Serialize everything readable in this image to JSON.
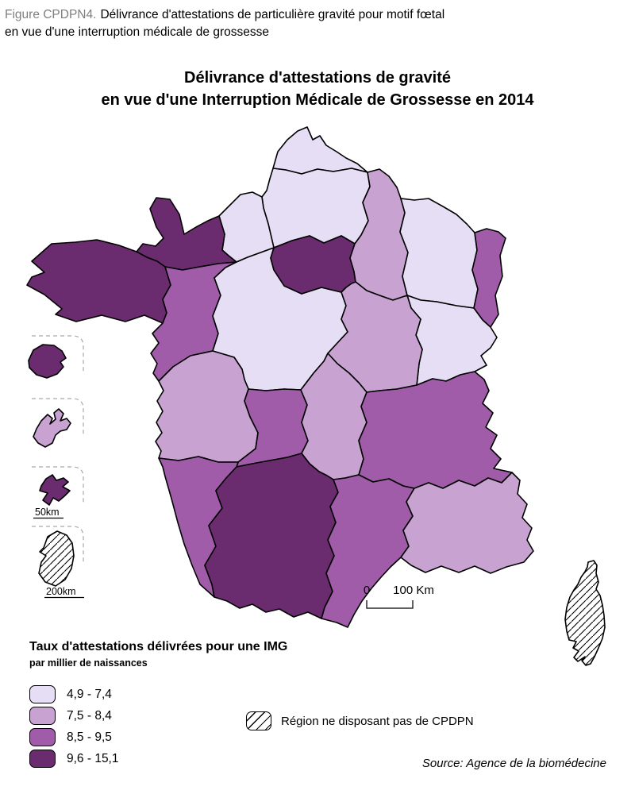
{
  "header": {
    "label": "Figure CPDPN4.",
    "line1": "Délivrance d'attestations de particulière gravité pour motif fœtal",
    "line2": "en vue d'une interruption médicale de grossesse"
  },
  "map": {
    "title_line1": "Délivrance d'attestations de gravité",
    "title_line2": "en vue d'une Interruption Médicale de Grossesse en 2014",
    "scalebar": {
      "start": "0",
      "end": "100 Km"
    },
    "inset_scales": {
      "martinique": "50km",
      "guyane": "200km"
    },
    "regions": [
      {
        "id": "nord-pas-de-calais",
        "name": "Nord-Pas-de-Calais",
        "class": 1
      },
      {
        "id": "picardie",
        "name": "Picardie",
        "class": 1
      },
      {
        "id": "haute-normandie",
        "name": "Haute-Normandie",
        "class": 1
      },
      {
        "id": "basse-normandie",
        "name": "Basse-Normandie",
        "class": 4
      },
      {
        "id": "bretagne",
        "name": "Bretagne",
        "class": 4
      },
      {
        "id": "pays-de-la-loire",
        "name": "Pays de la Loire",
        "class": 3
      },
      {
        "id": "centre",
        "name": "Centre",
        "class": 1
      },
      {
        "id": "ile-de-france",
        "name": "Île-de-France",
        "class": 4
      },
      {
        "id": "champagne-ardenne",
        "name": "Champagne-Ardenne",
        "class": 2
      },
      {
        "id": "lorraine",
        "name": "Lorraine",
        "class": 1
      },
      {
        "id": "alsace",
        "name": "Alsace",
        "class": 3
      },
      {
        "id": "franche-comte",
        "name": "Franche-Comté",
        "class": 1
      },
      {
        "id": "bourgogne",
        "name": "Bourgogne",
        "class": 2
      },
      {
        "id": "poitou-charentes",
        "name": "Poitou-Charentes",
        "class": 2
      },
      {
        "id": "limousin",
        "name": "Limousin",
        "class": 3
      },
      {
        "id": "auvergne",
        "name": "Auvergne",
        "class": 2
      },
      {
        "id": "rhone-alpes",
        "name": "Rhône-Alpes",
        "class": 3
      },
      {
        "id": "aquitaine",
        "name": "Aquitaine",
        "class": 3
      },
      {
        "id": "midi-pyrenees",
        "name": "Midi-Pyrénées",
        "class": 4
      },
      {
        "id": "languedoc-roussillon",
        "name": "Languedoc-Roussillon",
        "class": 3
      },
      {
        "id": "paca",
        "name": "Provence-Alpes-Côte d'Azur",
        "class": 2
      },
      {
        "id": "corse",
        "name": "Corse",
        "class": "hatch"
      }
    ],
    "insets": [
      {
        "id": "reunion",
        "name": "Réunion",
        "class": 4
      },
      {
        "id": "guadeloupe",
        "name": "Guadeloupe",
        "class": 2
      },
      {
        "id": "martinique",
        "name": "Martinique",
        "class": 4
      },
      {
        "id": "guyane",
        "name": "Guyane",
        "class": "hatch"
      }
    ]
  },
  "legend": {
    "title": "Taux d'attestations délivrées pour une IMG",
    "subtitle": "par millier de naissances",
    "classes": [
      {
        "label": "4,9 - 7,4",
        "color": "#E6DEF5"
      },
      {
        "label": "7,5 - 8,4",
        "color": "#C8A2D1"
      },
      {
        "label": "8,5 - 9,5",
        "color": "#A05CA8"
      },
      {
        "label": "9,6 - 15,1",
        "color": "#6B2C6F"
      }
    ],
    "hatch_label": "Région ne disposant pas de CPDPN"
  },
  "source": "Source: Agence de la biomédecine"
}
